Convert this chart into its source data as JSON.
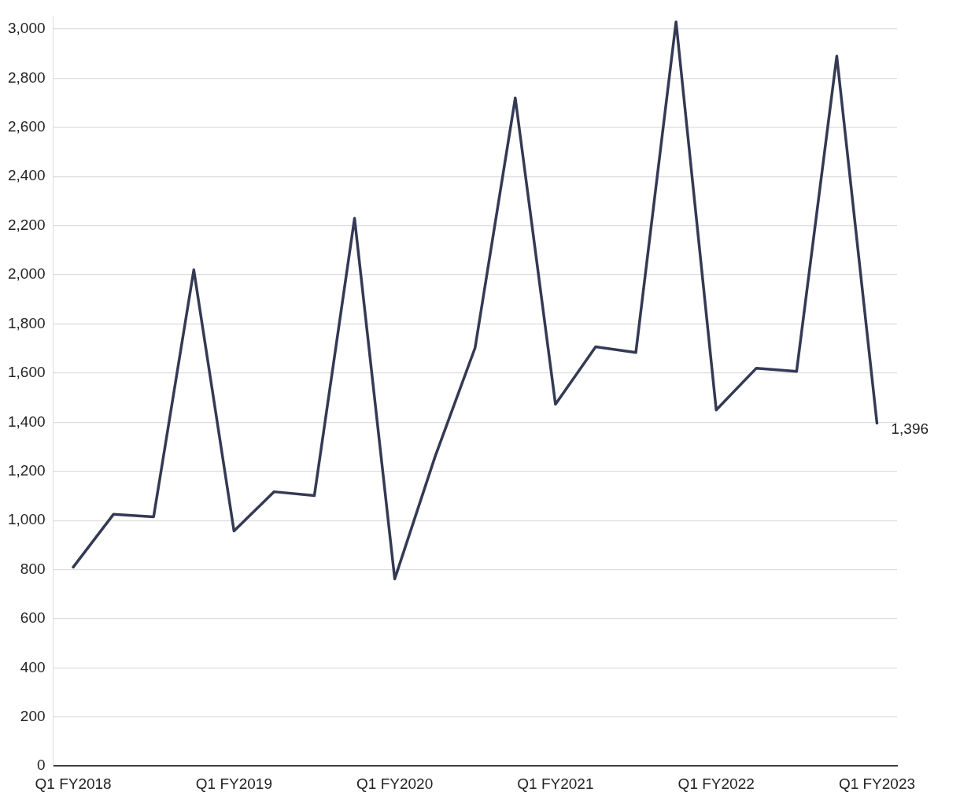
{
  "chart_data": {
    "type": "line",
    "categories": [
      "Q1 FY2018",
      null,
      null,
      null,
      "Q1 FY2019",
      null,
      null,
      null,
      "Q1 FY2020",
      null,
      null,
      null,
      "Q1 FY2021",
      null,
      null,
      null,
      "Q1 FY2022",
      null,
      null,
      null,
      "Q1 FY2023"
    ],
    "series": [
      {
        "color": "#343a54",
        "values": [
          810,
          1025,
          1015,
          2020,
          957,
          1117,
          1101,
          2230,
          762,
          1258,
          1703,
          2720,
          1473,
          1707,
          1684,
          3030,
          1450,
          1620,
          1607,
          2890,
          1396
        ],
        "value_labels": [
          null,
          null,
          null,
          null,
          null,
          null,
          null,
          null,
          null,
          null,
          null,
          null,
          null,
          null,
          null,
          null,
          null,
          null,
          null,
          null,
          "1,396"
        ]
      }
    ],
    "ylim": [
      0,
      3050
    ],
    "yticks": [
      0,
      200,
      400,
      600,
      800,
      {
        "value": 1000,
        "label": "1,000"
      },
      {
        "value": 1200,
        "label": "1,200"
      },
      {
        "value": 1400,
        "label": "1,400"
      },
      {
        "value": 1600,
        "label": "1,600"
      },
      {
        "value": 1800,
        "label": "1,800"
      },
      {
        "value": 2000,
        "label": "2,000"
      },
      {
        "value": 2200,
        "label": "2,200"
      },
      {
        "value": 2400,
        "label": "2,400"
      },
      {
        "value": 2600,
        "label": "2,600"
      },
      {
        "value": 2800,
        "label": "2,800"
      },
      {
        "value": 3000,
        "label": "3,000"
      }
    ],
    "grid": "y",
    "legend": false,
    "marker": "none",
    "line_style": "solid"
  }
}
